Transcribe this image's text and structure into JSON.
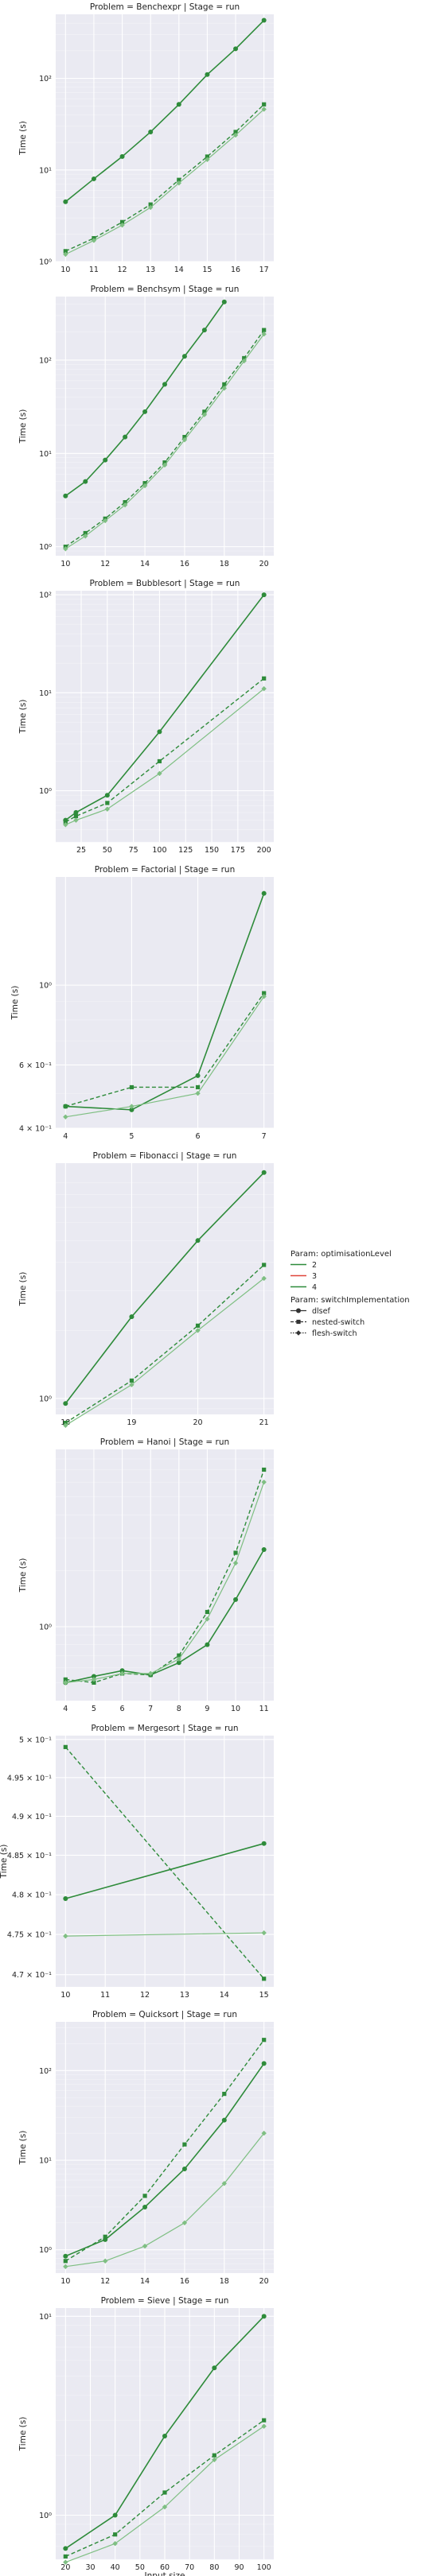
{
  "figure": {
    "xlabel": "Input size",
    "legend": {
      "position": "right",
      "title1": "Param: optimisationLevel",
      "levels": [
        {
          "label": "2",
          "color": "#2e8b3a"
        },
        {
          "label": "3",
          "color": "#e0453a"
        },
        {
          "label": "4",
          "color": "#2e8b3a"
        }
      ],
      "title2": "Param: switchImplementation",
      "impls": [
        {
          "label": "dlsef",
          "dash": "solid",
          "marker": "circle"
        },
        {
          "label": "nested-switch",
          "dash": "dashed",
          "marker": "square"
        },
        {
          "label": "flesh-switch",
          "dash": "dotted",
          "marker": "diamond"
        }
      ]
    }
  },
  "chart_data": [
    {
      "type": "line",
      "title": "Problem = Benchexpr | Stage = run",
      "xlabel": "",
      "ylabel": "Time (s)",
      "yscale": "log",
      "ylim": [
        1,
        500
      ],
      "xticks": [
        10,
        11,
        12,
        13,
        14,
        15,
        16,
        17
      ],
      "yticks": [
        {
          "v": 1,
          "label": "10⁰"
        },
        {
          "v": 10,
          "label": "10¹"
        },
        {
          "v": 100,
          "label": "10²"
        }
      ],
      "x": [
        10,
        11,
        12,
        13,
        14,
        15,
        16,
        17
      ],
      "series": [
        {
          "impl": "dlsef",
          "values": [
            4.5,
            8,
            14,
            26,
            52,
            110,
            210,
            430
          ]
        },
        {
          "impl": "nested-switch",
          "values": [
            1.3,
            1.8,
            2.7,
            4.2,
            7.8,
            14,
            26,
            52
          ]
        },
        {
          "impl": "flesh-switch",
          "values": [
            1.2,
            1.7,
            2.5,
            3.9,
            7.2,
            13,
            24,
            46
          ]
        }
      ]
    },
    {
      "type": "line",
      "title": "Problem = Benchsym | Stage = run",
      "xlabel": "",
      "ylabel": "Time (s)",
      "yscale": "log",
      "ylim": [
        0.8,
        480
      ],
      "xticks": [
        10,
        12,
        14,
        16,
        18,
        20
      ],
      "yticks": [
        {
          "v": 1,
          "label": "10⁰"
        },
        {
          "v": 10,
          "label": "10¹"
        },
        {
          "v": 100,
          "label": "10²"
        }
      ],
      "x": [
        10,
        11,
        12,
        13,
        14,
        15,
        16,
        17,
        18,
        19,
        20
      ],
      "series": [
        {
          "impl": "dlsef",
          "values": [
            3.5,
            5,
            8.5,
            15,
            28,
            55,
            110,
            210,
            420,
            null,
            null
          ]
        },
        {
          "impl": "nested-switch",
          "values": [
            1.0,
            1.4,
            2.0,
            3.0,
            4.8,
            8,
            15,
            28,
            55,
            105,
            210
          ]
        },
        {
          "impl": "flesh-switch",
          "values": [
            0.95,
            1.3,
            1.9,
            2.8,
            4.5,
            7.5,
            14,
            26,
            50,
            98,
            190
          ]
        }
      ]
    },
    {
      "type": "line",
      "title": "Problem = Bubblesort | Stage = run",
      "xlabel": "",
      "ylabel": "Time (s)",
      "yscale": "log",
      "ylim": [
        0.3,
        110
      ],
      "xticks": [
        25,
        50,
        75,
        100,
        125,
        150,
        175,
        200
      ],
      "yticks": [
        {
          "v": 1,
          "label": "10⁰"
        },
        {
          "v": 10,
          "label": "10¹"
        },
        {
          "v": 100,
          "label": "10²"
        }
      ],
      "x": [
        10,
        20,
        50,
        100,
        200
      ],
      "series": [
        {
          "impl": "dlsef",
          "values": [
            0.5,
            0.6,
            0.9,
            4.0,
            100
          ]
        },
        {
          "impl": "nested-switch",
          "values": [
            0.48,
            0.55,
            0.75,
            2.0,
            14
          ]
        },
        {
          "impl": "flesh-switch",
          "values": [
            0.45,
            0.5,
            0.65,
            1.5,
            11
          ]
        }
      ]
    },
    {
      "type": "line",
      "title": "Problem = Factorial | Stage = run",
      "xlabel": "",
      "ylabel": "Time (s)",
      "yscale": "log",
      "ylim": [
        0.4,
        2.0
      ],
      "xticks": [
        4,
        5,
        6,
        7
      ],
      "yticks": [
        {
          "v": 0.4,
          "label": "4 × 10⁻¹"
        },
        {
          "v": 0.6,
          "label": "6 × 10⁻¹"
        },
        {
          "v": 1,
          "label": "10⁰"
        }
      ],
      "x": [
        4,
        5,
        6,
        7
      ],
      "series": [
        {
          "impl": "dlsef",
          "values": [
            0.46,
            0.45,
            0.56,
            1.8
          ]
        },
        {
          "impl": "nested-switch",
          "values": [
            0.46,
            0.52,
            0.52,
            0.95
          ]
        },
        {
          "impl": "flesh-switch",
          "values": [
            0.43,
            0.46,
            0.5,
            0.93
          ]
        }
      ]
    },
    {
      "type": "line",
      "title": "Problem = Fibonacci | Stage = run",
      "xlabel": "",
      "ylabel": "Time (s)",
      "yscale": "log",
      "ylim": [
        0.85,
        11
      ],
      "xticks": [
        18,
        19,
        20,
        21
      ],
      "yticks": [
        {
          "v": 1,
          "label": "10⁰"
        }
      ],
      "x": [
        18,
        19,
        20,
        21
      ],
      "series": [
        {
          "impl": "dlsef",
          "values": [
            0.95,
            2.3,
            5.0,
            10
          ]
        },
        {
          "impl": "nested-switch",
          "values": [
            0.78,
            1.2,
            2.1,
            3.9
          ]
        },
        {
          "impl": "flesh-switch",
          "values": [
            0.76,
            1.15,
            2.0,
            3.4
          ]
        }
      ]
    },
    {
      "type": "line",
      "title": "Problem = Hanoi | Stage = run",
      "xlabel": "",
      "ylabel": "Time (s)",
      "yscale": "log",
      "ylim": [
        0.4,
        9
      ],
      "xticks": [
        4,
        5,
        6,
        7,
        8,
        9,
        10,
        11
      ],
      "yticks": [
        {
          "v": 1,
          "label": "10⁰"
        }
      ],
      "x": [
        4,
        5,
        6,
        7,
        8,
        9,
        10,
        11
      ],
      "series": [
        {
          "impl": "dlsef",
          "values": [
            0.5,
            0.54,
            0.58,
            0.55,
            0.64,
            0.8,
            1.4,
            2.6
          ]
        },
        {
          "impl": "nested-switch",
          "values": [
            0.52,
            0.5,
            0.56,
            0.55,
            0.7,
            1.2,
            2.5,
            7.0
          ]
        },
        {
          "impl": "flesh-switch",
          "values": [
            0.5,
            0.52,
            0.56,
            0.56,
            0.67,
            1.1,
            2.2,
            6.0
          ]
        }
      ]
    },
    {
      "type": "line",
      "title": "Problem = Mergesort | Stage = run",
      "xlabel": "",
      "ylabel": "Time (s)",
      "yscale": "log",
      "ylim": [
        0.4685,
        0.5005
      ],
      "xticks": [
        10,
        11,
        12,
        13,
        14,
        15
      ],
      "yticks": [
        {
          "v": 0.47,
          "label": "4.7 × 10⁻¹"
        },
        {
          "v": 0.475,
          "label": "4.75 × 10⁻¹"
        },
        {
          "v": 0.48,
          "label": "4.8 × 10⁻¹"
        },
        {
          "v": 0.485,
          "label": "4.85 × 10⁻¹"
        },
        {
          "v": 0.49,
          "label": "4.9 × 10⁻¹"
        },
        {
          "v": 0.495,
          "label": "4.95 × 10⁻¹"
        },
        {
          "v": 0.5,
          "label": "5 × 10⁻¹"
        }
      ],
      "x": [
        10,
        15
      ],
      "series": [
        {
          "impl": "dlsef",
          "values": [
            0.4795,
            0.4865
          ]
        },
        {
          "impl": "nested-switch",
          "values": [
            0.499,
            0.4695
          ]
        },
        {
          "impl": "flesh-switch",
          "values": [
            0.4748,
            0.4752
          ]
        }
      ]
    },
    {
      "type": "line",
      "title": "Problem = Quicksort | Stage = run",
      "xlabel": "",
      "ylabel": "Time (s)",
      "yscale": "log",
      "ylim": [
        0.55,
        350
      ],
      "xticks": [
        10,
        12,
        14,
        16,
        18,
        20
      ],
      "yticks": [
        {
          "v": 1,
          "label": "10⁰"
        },
        {
          "v": 10,
          "label": "10¹"
        },
        {
          "v": 100,
          "label": "10²"
        }
      ],
      "x": [
        10,
        12,
        14,
        16,
        18,
        20
      ],
      "series": [
        {
          "impl": "dlsef",
          "values": [
            0.85,
            1.3,
            3.0,
            8.0,
            28,
            120
          ]
        },
        {
          "impl": "nested-switch",
          "values": [
            0.75,
            1.4,
            4.0,
            15,
            55,
            220
          ]
        },
        {
          "impl": "flesh-switch",
          "values": [
            0.65,
            0.75,
            1.1,
            2.0,
            5.5,
            20
          ]
        }
      ]
    },
    {
      "type": "line",
      "title": "Problem = Sieve | Stage = run",
      "xlabel": "Input size",
      "ylabel": "Time (s)",
      "yscale": "log",
      "ylim": [
        0.6,
        11
      ],
      "xticks": [
        20,
        30,
        40,
        50,
        60,
        70,
        80,
        90,
        100
      ],
      "yticks": [
        {
          "v": 1,
          "label": "10⁰"
        },
        {
          "v": 10,
          "label": "10¹"
        }
      ],
      "x": [
        20,
        40,
        60,
        80,
        100
      ],
      "series": [
        {
          "impl": "dlsef",
          "values": [
            0.68,
            1.0,
            2.5,
            5.5,
            10
          ]
        },
        {
          "impl": "nested-switch",
          "values": [
            0.62,
            0.8,
            1.3,
            2.0,
            3.0
          ]
        },
        {
          "impl": "flesh-switch",
          "values": [
            0.58,
            0.72,
            1.1,
            1.9,
            2.8
          ]
        }
      ]
    }
  ]
}
